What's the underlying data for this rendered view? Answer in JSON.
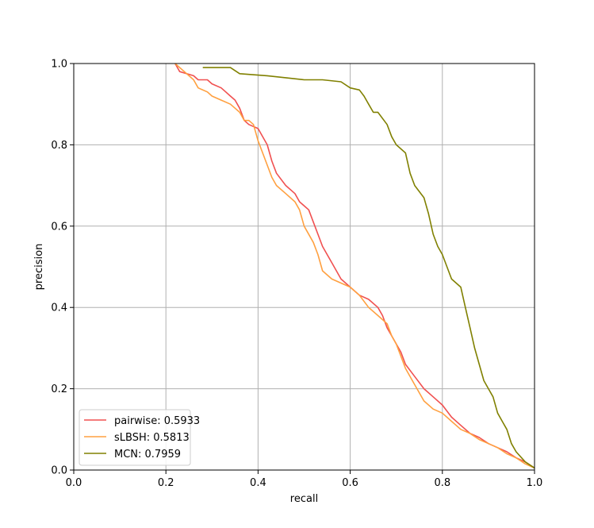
{
  "chart_data": {
    "type": "line",
    "title": "",
    "xlabel": "recall",
    "ylabel": "precision",
    "xlim": [
      0.0,
      1.0
    ],
    "ylim": [
      0.0,
      1.0
    ],
    "xticks": [
      0.0,
      0.2,
      0.4,
      0.6,
      0.8,
      1.0
    ],
    "yticks": [
      0.0,
      0.2,
      0.4,
      0.6,
      0.8,
      1.0
    ],
    "xtick_labels": [
      "0.0",
      "0.2",
      "0.4",
      "0.6",
      "0.8",
      "1.0"
    ],
    "ytick_labels": [
      "0.0",
      "0.2",
      "0.4",
      "0.6",
      "0.8",
      "1.0"
    ],
    "grid": true,
    "legend_position": "lower-left",
    "series": [
      {
        "name": "pairwise: 0.5933",
        "color": "#f05050",
        "x": [
          0.22,
          0.23,
          0.26,
          0.27,
          0.29,
          0.3,
          0.32,
          0.33,
          0.34,
          0.35,
          0.36,
          0.37,
          0.38,
          0.4,
          0.42,
          0.43,
          0.44,
          0.46,
          0.48,
          0.49,
          0.51,
          0.52,
          0.53,
          0.54,
          0.56,
          0.58,
          0.6,
          0.62,
          0.64,
          0.66,
          0.67,
          0.68,
          0.69,
          0.71,
          0.72,
          0.74,
          0.76,
          0.78,
          0.8,
          0.82,
          0.84,
          0.86,
          0.88,
          0.9,
          0.92,
          0.94,
          0.96,
          0.98,
          1.0
        ],
        "y": [
          1.0,
          0.98,
          0.97,
          0.96,
          0.96,
          0.95,
          0.94,
          0.93,
          0.92,
          0.91,
          0.89,
          0.86,
          0.85,
          0.84,
          0.8,
          0.76,
          0.73,
          0.7,
          0.68,
          0.66,
          0.64,
          0.61,
          0.58,
          0.55,
          0.51,
          0.47,
          0.45,
          0.43,
          0.42,
          0.4,
          0.38,
          0.35,
          0.33,
          0.29,
          0.26,
          0.23,
          0.2,
          0.18,
          0.16,
          0.13,
          0.11,
          0.09,
          0.08,
          0.065,
          0.055,
          0.045,
          0.03,
          0.02,
          0.005
        ]
      },
      {
        "name": "sLBSH: 0.5813",
        "color": "#ffa040",
        "x": [
          0.22,
          0.23,
          0.24,
          0.26,
          0.27,
          0.29,
          0.3,
          0.32,
          0.34,
          0.35,
          0.36,
          0.37,
          0.38,
          0.39,
          0.4,
          0.41,
          0.42,
          0.43,
          0.44,
          0.46,
          0.48,
          0.49,
          0.5,
          0.52,
          0.53,
          0.54,
          0.56,
          0.58,
          0.6,
          0.62,
          0.64,
          0.66,
          0.68,
          0.69,
          0.7,
          0.71,
          0.72,
          0.74,
          0.76,
          0.78,
          0.8,
          0.82,
          0.84,
          0.86,
          0.88,
          0.9,
          0.92,
          0.94,
          0.96,
          0.98,
          1.0
        ],
        "y": [
          1.0,
          0.99,
          0.98,
          0.96,
          0.94,
          0.93,
          0.92,
          0.91,
          0.9,
          0.89,
          0.88,
          0.86,
          0.86,
          0.85,
          0.81,
          0.78,
          0.75,
          0.72,
          0.7,
          0.68,
          0.66,
          0.64,
          0.6,
          0.56,
          0.53,
          0.49,
          0.47,
          0.46,
          0.45,
          0.43,
          0.4,
          0.38,
          0.36,
          0.33,
          0.31,
          0.28,
          0.25,
          0.21,
          0.17,
          0.15,
          0.14,
          0.12,
          0.1,
          0.09,
          0.075,
          0.065,
          0.055,
          0.04,
          0.03,
          0.015,
          0.005
        ]
      },
      {
        "name": "MCN: 0.7959",
        "color": "#808000",
        "x": [
          0.28,
          0.3,
          0.34,
          0.36,
          0.42,
          0.46,
          0.5,
          0.54,
          0.58,
          0.6,
          0.62,
          0.63,
          0.64,
          0.65,
          0.66,
          0.68,
          0.69,
          0.7,
          0.72,
          0.73,
          0.74,
          0.76,
          0.77,
          0.78,
          0.79,
          0.8,
          0.81,
          0.82,
          0.83,
          0.84,
          0.85,
          0.86,
          0.87,
          0.88,
          0.89,
          0.9,
          0.91,
          0.92,
          0.93,
          0.94,
          0.95,
          0.96,
          0.98,
          1.0
        ],
        "y": [
          0.99,
          0.99,
          0.99,
          0.975,
          0.97,
          0.965,
          0.96,
          0.96,
          0.955,
          0.94,
          0.935,
          0.92,
          0.9,
          0.88,
          0.88,
          0.85,
          0.82,
          0.8,
          0.78,
          0.73,
          0.7,
          0.67,
          0.63,
          0.58,
          0.55,
          0.53,
          0.5,
          0.47,
          0.46,
          0.45,
          0.4,
          0.35,
          0.3,
          0.26,
          0.22,
          0.2,
          0.18,
          0.14,
          0.12,
          0.1,
          0.065,
          0.045,
          0.02,
          0.005
        ]
      }
    ]
  }
}
